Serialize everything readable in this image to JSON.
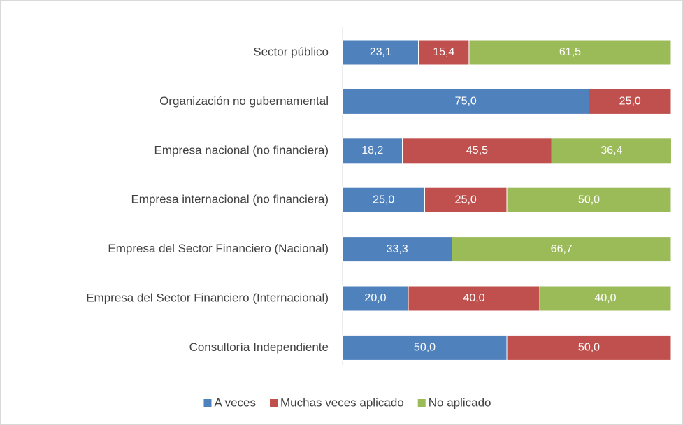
{
  "chart_data": {
    "type": "bar",
    "orientation": "horizontal",
    "stacked": true,
    "categories": [
      "Sector público",
      "Organización no gubernamental",
      "Empresa nacional (no financiera)",
      "Empresa internacional (no financiera)",
      "Empresa del Sector Financiero (Nacional)",
      "Empresa del Sector Financiero (Internacional)",
      "Consultoría Independiente"
    ],
    "xlim": [
      0,
      100
    ],
    "legend": "bottom",
    "series": [
      {
        "name": "A veces",
        "color": "#4f81bd",
        "values": [
          23.1,
          75.0,
          18.2,
          25.0,
          33.3,
          20.0,
          50.0
        ],
        "value_labels": [
          "23,1",
          "75,0",
          "18,2",
          "25,0",
          "33,3",
          "20,0",
          "50,0"
        ]
      },
      {
        "name": "Muchas veces aplicado",
        "color": "#c0504d",
        "values": [
          15.4,
          25.0,
          45.5,
          25.0,
          null,
          40.0,
          50.0
        ],
        "value_labels": [
          "15,4",
          "25,0",
          "45,5",
          "25,0",
          null,
          "40,0",
          "50,0"
        ]
      },
      {
        "name": "No aplicado",
        "color": "#9bbb59",
        "values": [
          61.5,
          null,
          36.4,
          50.0,
          66.7,
          40.0,
          null
        ],
        "value_labels": [
          "61,5",
          null,
          "36,4",
          "50,0",
          "66,7",
          "40,0",
          null
        ]
      }
    ]
  }
}
